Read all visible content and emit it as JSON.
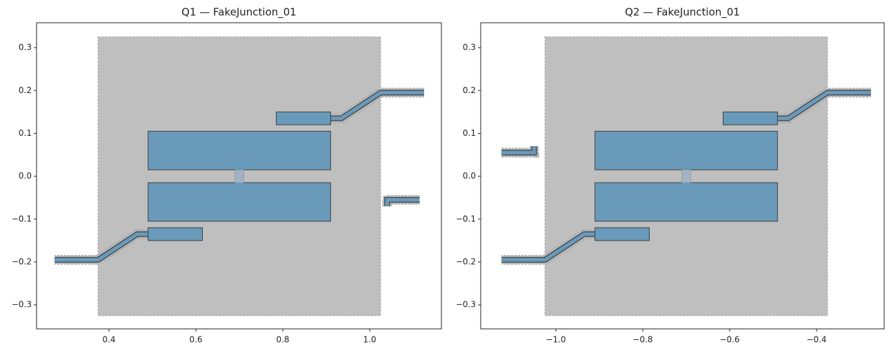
{
  "chart_data": [
    {
      "type": "layout",
      "title": "Q1 — FakeJunction_01",
      "xlim": [
        0.2333,
        1.165
      ],
      "ylim": [
        -0.356,
        0.358
      ],
      "xticks": [
        0.4,
        0.6,
        0.8,
        {
          "value": 1.0,
          "label": "1.0"
        }
      ],
      "yticks": [
        {
          "value": -0.3,
          "label": "−0.3"
        },
        {
          "value": -0.2,
          "label": "−0.2"
        },
        {
          "value": -0.1,
          "label": "−0.1"
        },
        {
          "value": 0,
          "label": "0.0"
        },
        0.1,
        0.2,
        0.3
      ],
      "pocket": {
        "x": [
          0.375,
          1.025
        ],
        "y": [
          -0.325,
          0.325
        ],
        "color": "#bfbfbf"
      },
      "pads": {
        "color": "#6a9aba",
        "rects": [
          {
            "x": [
              0.49,
              0.91
            ],
            "y": [
              0.015,
              0.105
            ]
          },
          {
            "x": [
              0.49,
              0.91
            ],
            "y": [
              -0.105,
              -0.015
            ]
          },
          {
            "x": [
              0.785,
              0.91
            ],
            "y": [
              0.12,
              0.15
            ]
          },
          {
            "x": [
              0.49,
              0.615
            ],
            "y": [
              -0.15,
              -0.12
            ]
          }
        ]
      },
      "junction": {
        "x": [
          0.69,
          0.71
        ],
        "y": [
          -0.015,
          0.015
        ],
        "color": "#a3b3c4"
      },
      "leads": [
        {
          "x": [
            0.91,
            0.935,
            1.025,
            1.125
          ],
          "y": [
            0.135,
            0.135,
            0.195,
            0.195
          ]
        },
        {
          "x": [
            0.49,
            0.465,
            0.375,
            0.275
          ],
          "y": [
            -0.135,
            -0.135,
            -0.195,
            -0.195
          ]
        },
        {
          "x": [
            1.04,
            1.04,
            1.115
          ],
          "y": [
            -0.07,
            -0.055,
            -0.055
          ]
        }
      ]
    },
    {
      "type": "layout",
      "title": "Q2 — FakeJunction_01",
      "xlim": [
        -1.173,
        -0.2444
      ],
      "ylim": [
        -0.356,
        0.358
      ],
      "xticks": [
        {
          "value": -1.0,
          "label": "−1.0"
        },
        {
          "value": -0.8,
          "label": "−0.8"
        },
        {
          "value": -0.6,
          "label": "−0.6"
        },
        {
          "value": -0.4,
          "label": "−0.4"
        }
      ],
      "yticks": [
        {
          "value": -0.3,
          "label": "−0.3"
        },
        {
          "value": -0.2,
          "label": "−0.2"
        },
        {
          "value": -0.1,
          "label": "−0.1"
        },
        {
          "value": 0,
          "label": "0.0"
        },
        0.1,
        0.2,
        0.3
      ],
      "pocket": {
        "x": [
          -1.025,
          -0.375
        ],
        "y": [
          -0.325,
          0.325
        ],
        "color": "#bfbfbf"
      },
      "pads": {
        "color": "#6a9aba",
        "rects": [
          {
            "x": [
              -0.91,
              -0.49
            ],
            "y": [
              0.015,
              0.105
            ]
          },
          {
            "x": [
              -0.91,
              -0.49
            ],
            "y": [
              -0.105,
              -0.015
            ]
          },
          {
            "x": [
              -0.615,
              -0.49
            ],
            "y": [
              0.12,
              0.15
            ]
          },
          {
            "x": [
              -0.91,
              -0.785
            ],
            "y": [
              -0.15,
              -0.12
            ]
          }
        ]
      },
      "junction": {
        "x": [
          -0.71,
          -0.69
        ],
        "y": [
          -0.015,
          0.015
        ],
        "color": "#a3b3c4"
      },
      "leads": [
        {
          "x": [
            -0.49,
            -0.465,
            -0.375,
            -0.275
          ],
          "y": [
            0.135,
            0.135,
            0.195,
            0.195
          ]
        },
        {
          "x": [
            -0.91,
            -0.935,
            -1.025,
            -1.125
          ],
          "y": [
            -0.135,
            -0.135,
            -0.195,
            -0.195
          ]
        },
        {
          "x": [
            -1.125,
            -1.05,
            -1.05
          ],
          "y": [
            0.055,
            0.055,
            0.07
          ]
        }
      ]
    }
  ]
}
